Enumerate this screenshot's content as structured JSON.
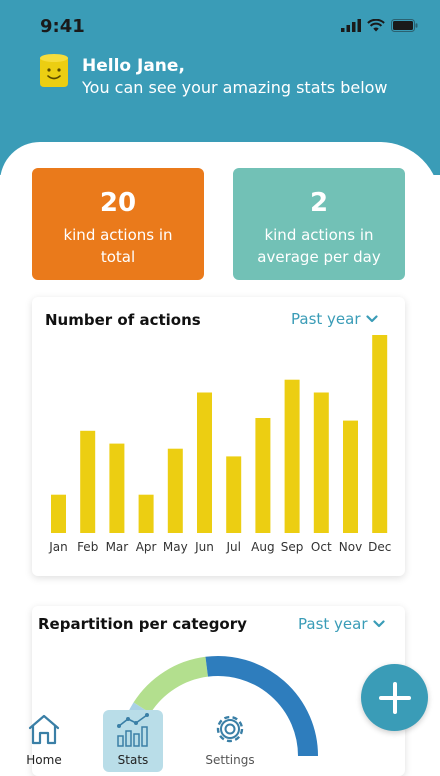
{
  "status_bar": {
    "time": "9:41"
  },
  "header": {
    "greeting": "Hello Jane,",
    "subtitle": "You can see your amazing stats below"
  },
  "stats": {
    "total": {
      "value": "20",
      "label_line1": "kind actions in",
      "label_line2": "total"
    },
    "average": {
      "value": "2",
      "label_line1": "kind actions in",
      "label_line2": "average per day"
    }
  },
  "actions_panel": {
    "title": "Number of actions",
    "period": "Past year"
  },
  "category_panel": {
    "title": "Repartition per category",
    "period": "Past year"
  },
  "tabs": [
    {
      "label": "Home"
    },
    {
      "label": "Stats"
    },
    {
      "label": "Settings"
    }
  ],
  "colors": {
    "header": "#3a9cb7",
    "bar": "#ecce12",
    "orange_card": "#ea7a1b",
    "teal_card": "#72c1b6"
  },
  "chart_data": [
    {
      "type": "bar",
      "categories": [
        "Jan",
        "Feb",
        "Mar",
        "Apr",
        "May",
        "Jun",
        "Jul",
        "Aug",
        "Sep",
        "Oct",
        "Nov",
        "Dec"
      ],
      "values": [
        3,
        8,
        7,
        3,
        6.6,
        11,
        6,
        9,
        12,
        11,
        8.8,
        15.5
      ],
      "ylim": [
        0,
        15.5
      ],
      "grid": false
    },
    {
      "type": "pie",
      "categories": [
        "",
        "",
        ""
      ],
      "values": [
        18,
        28,
        54
      ],
      "colors": [
        "#a9d1e6",
        "#b3df8e",
        "#2e7dbd"
      ]
    }
  ]
}
